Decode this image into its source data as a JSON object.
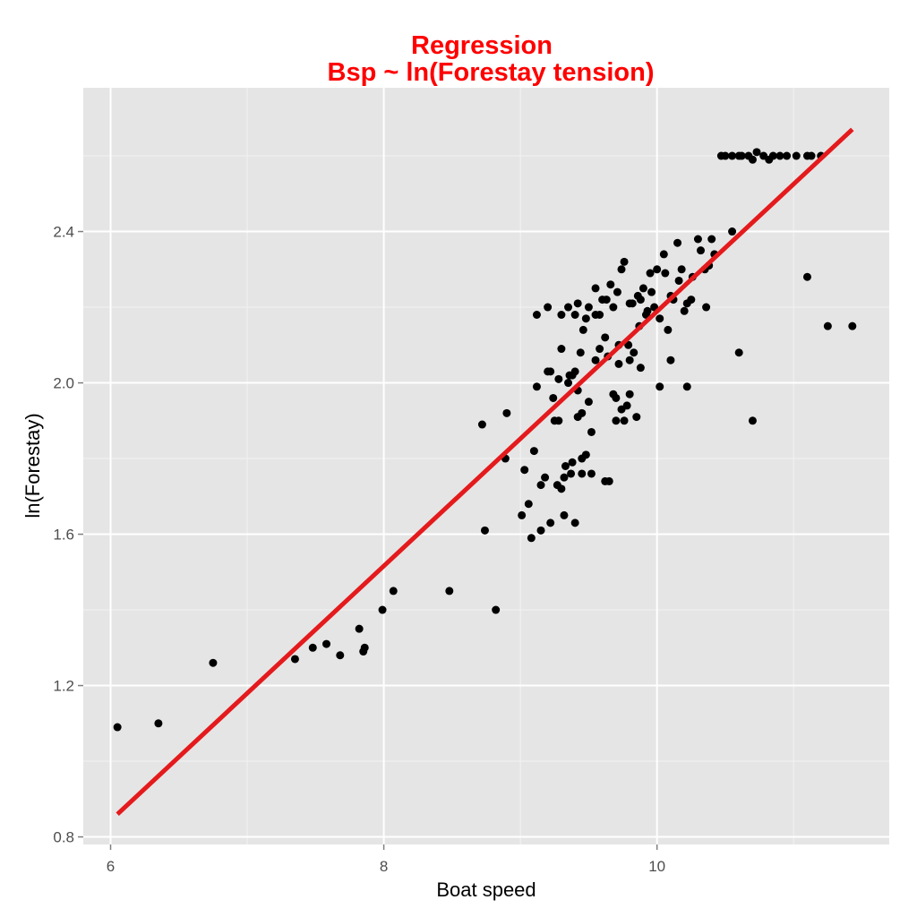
{
  "chart_data": {
    "type": "scatter",
    "title": "Regression",
    "subtitle": "Bsp ~ ln(Forestay tension)",
    "xlabel": "Boat speed",
    "ylabel": "ln(Forestay)",
    "xlim": [
      5.8,
      11.7
    ],
    "ylim": [
      0.78,
      2.78
    ],
    "x_ticks": [
      6,
      8,
      10
    ],
    "y_ticks": [
      0.8,
      1.2,
      1.6,
      2.0,
      2.4
    ],
    "x_tick_labels": [
      "6",
      "8",
      "10"
    ],
    "y_tick_labels": [
      "0.8",
      "1.2",
      "1.6",
      "2.0",
      "2.4"
    ],
    "grid": true,
    "legend": "none",
    "colors": {
      "title": "#ff0000",
      "regression_line": "#e41a1c",
      "points": "#000000",
      "panel": "#e5e5e5",
      "grid": "#ffffff"
    },
    "regression_line": {
      "x": [
        6.05,
        11.43
      ],
      "y": [
        0.86,
        2.67
      ]
    },
    "series": [
      {
        "x": [
          6.05,
          6.35,
          6.75,
          7.35,
          7.48,
          7.58,
          7.68,
          7.82,
          7.85,
          7.86,
          7.99,
          8.07,
          8.48,
          8.72,
          8.74,
          8.82,
          8.89,
          8.9,
          9.01,
          9.03,
          9.06,
          9.08,
          9.1,
          9.12,
          9.12,
          9.15,
          9.18,
          9.2,
          9.22,
          9.24,
          9.27,
          9.28,
          9.3,
          9.3,
          9.32,
          9.35,
          9.38,
          9.4,
          9.4,
          9.42,
          9.45,
          9.45,
          9.48,
          9.52,
          9.58,
          9.62,
          9.65,
          9.7,
          9.72,
          9.78,
          9.8,
          9.83,
          9.85,
          9.88,
          9.92,
          9.95,
          9.98,
          10.0,
          10.02,
          10.05,
          10.08,
          10.12,
          10.15,
          10.18,
          10.22,
          10.25,
          10.3,
          10.35,
          10.38,
          10.42,
          10.47,
          10.5,
          10.55,
          10.6,
          10.62,
          10.67,
          10.7,
          10.73,
          10.78,
          10.82,
          10.85,
          10.9,
          10.95,
          11.02,
          11.1,
          11.13,
          11.2,
          11.43,
          9.15,
          9.25,
          9.33,
          9.36,
          9.42,
          9.46,
          9.5,
          9.55,
          9.6,
          9.66,
          9.68,
          9.74,
          9.76,
          9.82,
          9.86,
          9.9,
          9.93,
          9.96,
          10.06,
          10.1,
          10.16,
          10.2,
          10.26,
          10.32,
          10.36,
          10.4,
          9.2,
          9.28,
          9.38,
          9.44,
          9.55,
          9.68,
          9.74,
          9.8,
          9.22,
          9.35,
          9.42,
          9.5,
          9.58,
          9.64,
          9.72,
          9.8,
          9.88,
          10.02,
          10.1,
          9.32,
          9.37,
          9.45,
          9.52,
          9.62,
          9.7,
          9.76,
          10.22,
          9.3,
          9.4,
          9.48,
          9.55,
          9.63,
          9.71,
          9.79,
          9.87,
          10.55,
          10.6,
          10.7,
          11.1,
          11.25
        ],
        "y": [
          1.09,
          1.1,
          1.26,
          1.27,
          1.3,
          1.31,
          1.28,
          1.35,
          1.29,
          1.3,
          1.4,
          1.45,
          1.45,
          1.89,
          1.61,
          1.4,
          1.8,
          1.92,
          1.65,
          1.77,
          1.68,
          1.59,
          1.82,
          2.18,
          1.99,
          1.61,
          1.75,
          2.2,
          1.63,
          1.96,
          1.73,
          1.9,
          1.72,
          2.09,
          1.65,
          2.2,
          1.79,
          1.63,
          2.03,
          2.21,
          1.8,
          1.92,
          1.81,
          1.76,
          2.18,
          2.12,
          1.74,
          1.9,
          2.1,
          1.94,
          2.21,
          2.08,
          1.91,
          2.22,
          2.18,
          2.29,
          2.2,
          2.3,
          2.17,
          2.34,
          2.14,
          2.22,
          2.37,
          2.3,
          2.21,
          2.22,
          2.38,
          2.3,
          2.31,
          2.34,
          2.6,
          2.6,
          2.6,
          2.6,
          2.6,
          2.6,
          2.59,
          2.61,
          2.6,
          2.59,
          2.6,
          2.6,
          2.6,
          2.6,
          2.6,
          2.6,
          2.6,
          2.15,
          1.73,
          1.9,
          1.78,
          2.02,
          1.98,
          2.14,
          2.2,
          2.18,
          2.22,
          2.26,
          2.2,
          2.3,
          2.32,
          2.21,
          2.23,
          2.25,
          2.19,
          2.24,
          2.29,
          2.23,
          2.27,
          2.19,
          2.28,
          2.35,
          2.2,
          2.38,
          2.03,
          2.01,
          2.02,
          2.08,
          2.06,
          1.97,
          1.93,
          1.97,
          2.03,
          2.0,
          1.91,
          1.95,
          2.09,
          2.07,
          2.05,
          2.06,
          2.04,
          1.99,
          2.06,
          1.75,
          1.76,
          1.76,
          1.87,
          1.74,
          1.96,
          1.9,
          1.99,
          2.18,
          2.18,
          2.17,
          2.25,
          2.22,
          2.24,
          2.1,
          2.15,
          2.4,
          2.08,
          1.9,
          2.28,
          2.15
        ]
      }
    ]
  }
}
